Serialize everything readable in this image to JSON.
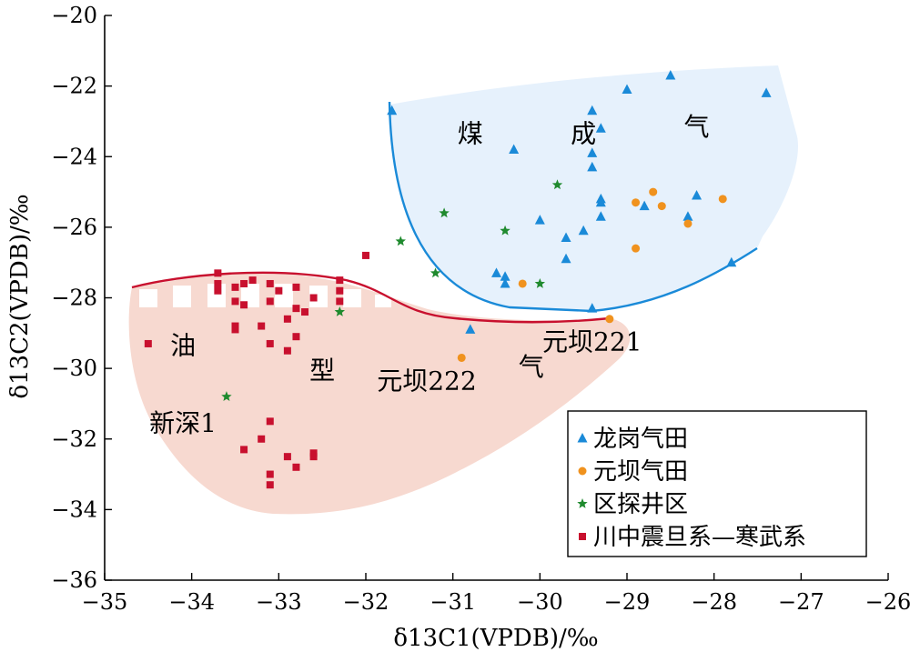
{
  "chart_data": {
    "type": "scatter",
    "xlabel": "δ13C1(VPDB)/‰",
    "ylabel": "δ13C2(VPDB)/‰",
    "xlim": [
      -35,
      -26
    ],
    "ylim": [
      -36,
      -20
    ],
    "x_ticks": [
      -35,
      -34,
      -33,
      -32,
      -31,
      -30,
      -29,
      -28,
      -27,
      -26
    ],
    "y_ticks": [
      -36,
      -34,
      -32,
      -30,
      -28,
      -26,
      -24,
      -22,
      -20
    ],
    "x_tick_labels": [
      "−35",
      "−34",
      "−33",
      "−32",
      "−31",
      "−30",
      "−29",
      "−28",
      "−27",
      "−26"
    ],
    "y_tick_labels": [
      "−36",
      "−34",
      "−32",
      "−30",
      "−28",
      "−26",
      "−24",
      "−22",
      "−20"
    ],
    "grid": false,
    "legend_position": "bottom-right",
    "regions": [
      {
        "name": "煤成气",
        "color": "#e6f1fc",
        "boundary_color": "#1a8ad8"
      },
      {
        "name": "油型气",
        "color": "#f7d9d0",
        "boundary_color": "#c8102e"
      }
    ],
    "region_labels": [
      {
        "text": "煤",
        "x": -30.8,
        "y": -23.6
      },
      {
        "text": "成",
        "x": -29.5,
        "y": -23.6
      },
      {
        "text": "气",
        "x": -28.2,
        "y": -23.4
      },
      {
        "text": "油",
        "x": -34.1,
        "y": -29.6
      },
      {
        "text": "型",
        "x": -32.5,
        "y": -30.3
      },
      {
        "text": "气",
        "x": -30.1,
        "y": -30.2
      }
    ],
    "annotations": [
      {
        "text": "元坝221",
        "x": -29.4,
        "y": -29.5
      },
      {
        "text": "元坝222",
        "x": -31.3,
        "y": -30.6
      },
      {
        "text": "新深1",
        "x": -34.1,
        "y": -31.8
      }
    ],
    "series": [
      {
        "name": "龙岗气田",
        "marker": "triangle",
        "color": "#1a8ad8",
        "points": [
          [
            -31.7,
            -22.7
          ],
          [
            -30.3,
            -23.8
          ],
          [
            -29.4,
            -22.7
          ],
          [
            -29.3,
            -23.2
          ],
          [
            -29.4,
            -23.9
          ],
          [
            -29.4,
            -24.3
          ],
          [
            -29.3,
            -25.2
          ],
          [
            -29.3,
            -25.3
          ],
          [
            -29.3,
            -25.7
          ],
          [
            -29.5,
            -26.1
          ],
          [
            -29.7,
            -26.3
          ],
          [
            -29.7,
            -26.9
          ],
          [
            -30.0,
            -25.8
          ],
          [
            -30.5,
            -27.3
          ],
          [
            -30.4,
            -27.4
          ],
          [
            -30.4,
            -27.6
          ],
          [
            -29.4,
            -28.3
          ],
          [
            -28.8,
            -25.4
          ],
          [
            -28.3,
            -25.7
          ],
          [
            -28.2,
            -25.1
          ],
          [
            -29.0,
            -22.1
          ],
          [
            -28.5,
            -21.7
          ],
          [
            -27.4,
            -22.2
          ],
          [
            -27.8,
            -27.0
          ],
          [
            -30.8,
            -28.9
          ]
        ]
      },
      {
        "name": "元坝气田",
        "marker": "circle",
        "color": "#f0921e",
        "points": [
          [
            -28.9,
            -25.3
          ],
          [
            -28.7,
            -25.0
          ],
          [
            -28.6,
            -25.4
          ],
          [
            -27.9,
            -25.2
          ],
          [
            -28.3,
            -25.9
          ],
          [
            -28.9,
            -26.6
          ],
          [
            -30.2,
            -27.6
          ],
          [
            -29.2,
            -28.6
          ],
          [
            -30.9,
            -29.7
          ]
        ]
      },
      {
        "name": "区探井区",
        "marker": "star",
        "color": "#1f8a2e",
        "points": [
          [
            -29.8,
            -24.8
          ],
          [
            -31.1,
            -25.6
          ],
          [
            -30.4,
            -26.1
          ],
          [
            -31.6,
            -26.4
          ],
          [
            -31.2,
            -27.3
          ],
          [
            -30.0,
            -27.6
          ],
          [
            -32.3,
            -28.4
          ],
          [
            -33.6,
            -30.8
          ]
        ]
      },
      {
        "name": "川中震旦系—寒武系",
        "marker": "square",
        "color": "#c8102e",
        "points": [
          [
            -34.5,
            -29.3
          ],
          [
            -33.7,
            -27.3
          ],
          [
            -33.7,
            -27.6
          ],
          [
            -33.7,
            -27.8
          ],
          [
            -33.5,
            -27.7
          ],
          [
            -33.4,
            -27.6
          ],
          [
            -33.3,
            -27.5
          ],
          [
            -33.5,
            -28.1
          ],
          [
            -33.4,
            -28.2
          ],
          [
            -33.1,
            -27.6
          ],
          [
            -33.0,
            -27.8
          ],
          [
            -32.8,
            -27.7
          ],
          [
            -32.6,
            -28.0
          ],
          [
            -33.1,
            -28.1
          ],
          [
            -32.8,
            -28.3
          ],
          [
            -32.7,
            -28.4
          ],
          [
            -32.9,
            -28.6
          ],
          [
            -33.2,
            -28.8
          ],
          [
            -33.5,
            -28.8
          ],
          [
            -33.5,
            -28.9
          ],
          [
            -32.8,
            -29.1
          ],
          [
            -33.1,
            -29.3
          ],
          [
            -32.9,
            -29.5
          ],
          [
            -32.3,
            -27.5
          ],
          [
            -32.3,
            -27.8
          ],
          [
            -32.3,
            -28.1
          ],
          [
            -32.0,
            -26.8
          ],
          [
            -33.1,
            -31.5
          ],
          [
            -33.2,
            -32.0
          ],
          [
            -33.4,
            -32.3
          ],
          [
            -32.9,
            -32.5
          ],
          [
            -32.6,
            -32.4
          ],
          [
            -32.6,
            -32.5
          ],
          [
            -32.8,
            -32.8
          ],
          [
            -33.1,
            -33.0
          ],
          [
            -33.1,
            -33.3
          ]
        ]
      }
    ]
  }
}
